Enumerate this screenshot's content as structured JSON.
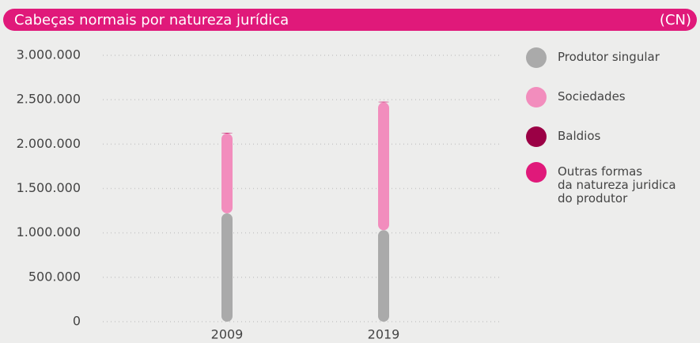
{
  "chart_data": {
    "type": "bar",
    "stacked": true,
    "title": "Cabeças normais por natureza jurídica",
    "unit": "(CN)",
    "categories": [
      "2009",
      "2019"
    ],
    "series": [
      {
        "name": "Produtor singular",
        "color": "#aaaaaa",
        "values": [
          1220000,
          1030000
        ]
      },
      {
        "name": "Sociedades",
        "color": "#f28dbd",
        "values": [
          900000,
          1440000
        ]
      },
      {
        "name": "Baldios",
        "color": "#9b0045",
        "values": [
          3000,
          3000
        ]
      },
      {
        "name": "Outras formas\nda natureza juridica\ndo produtor",
        "color": "#e0197a",
        "values": [
          5000,
          5000
        ]
      }
    ],
    "ylim": [
      0,
      3000000
    ],
    "yticks": [
      0,
      {
        "value": 500000,
        "label": "500.000"
      },
      {
        "value": 1000000,
        "label": "1.000.000"
      },
      {
        "value": 1500000,
        "label": "1.500.000"
      },
      {
        "value": 2000000,
        "label": "2.000.000"
      },
      {
        "value": 2500000,
        "label": "2.500.000"
      },
      {
        "value": 3000000,
        "label": "3.000.000"
      }
    ],
    "grid": true,
    "legend": "right"
  }
}
